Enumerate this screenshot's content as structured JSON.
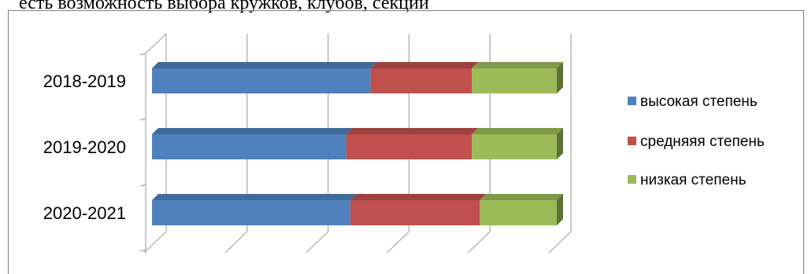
{
  "document": {
    "partial_text": "есть возможность выбора кружков, клубов, секций"
  },
  "chart_data": {
    "type": "bar",
    "orientation": "horizontal",
    "stacked": "percent",
    "three_d": true,
    "categories": [
      "2018-2019",
      "2019-2020",
      "2020-2021"
    ],
    "series": [
      {
        "name": "высокая степень",
        "color": "#4f81bd",
        "values": [
          54,
          48,
          49
        ]
      },
      {
        "name": "средняяя степень",
        "color": "#c0504d",
        "values": [
          25,
          31,
          32
        ]
      },
      {
        "name": "низкая степень",
        "color": "#9bbb59",
        "values": [
          21,
          21,
          19
        ]
      }
    ],
    "xlim": [
      0,
      100
    ],
    "grid": true,
    "legend": "right",
    "title": "",
    "xlabel": "",
    "ylabel": ""
  }
}
